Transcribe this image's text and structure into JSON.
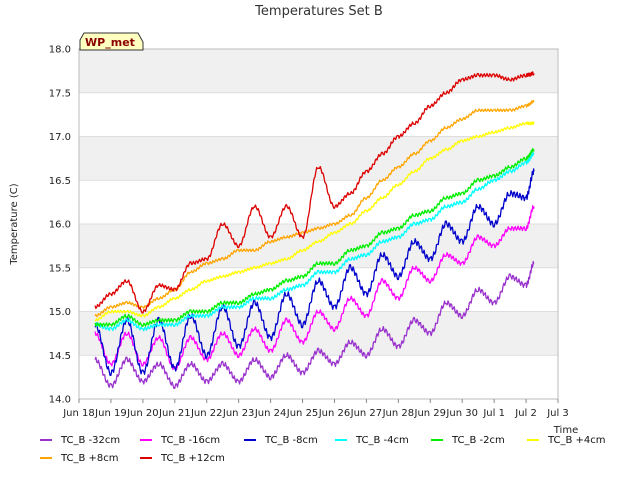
{
  "chart_data": {
    "type": "line",
    "title": "Temperatures Set B",
    "xlabel": "Time",
    "ylabel": "Temperature (C)",
    "badge": "WP_met",
    "xlim": [
      "2024-06-18",
      "2024-07-03"
    ],
    "ylim": [
      14.0,
      18.0
    ],
    "x_ticks": [
      "Jun 18",
      "Jun 19",
      "Jun 20",
      "Jun 21",
      "Jun 22",
      "Jun 23",
      "Jun 24",
      "Jun 25",
      "Jun 26",
      "Jun 27",
      "Jun 28",
      "Jun 29",
      "Jun 30",
      "Jul 1",
      "Jul 2",
      "Jul 3"
    ],
    "y_ticks": [
      "14.0",
      "14.5",
      "15.0",
      "15.5",
      "16.0",
      "16.5",
      "17.0",
      "17.5",
      "18.0"
    ],
    "grid": true,
    "legend": "bottom",
    "x": [
      "2024-06-18 12:00",
      "2024-06-19 00:00",
      "2024-06-19 12:00",
      "2024-06-20 00:00",
      "2024-06-20 12:00",
      "2024-06-21 00:00",
      "2024-06-21 12:00",
      "2024-06-22 00:00",
      "2024-06-22 12:00",
      "2024-06-23 00:00",
      "2024-06-23 12:00",
      "2024-06-24 00:00",
      "2024-06-24 12:00",
      "2024-06-25 00:00",
      "2024-06-25 12:00",
      "2024-06-26 00:00",
      "2024-06-26 12:00",
      "2024-06-27 00:00",
      "2024-06-27 12:00",
      "2024-06-28 00:00",
      "2024-06-28 12:00",
      "2024-06-29 00:00",
      "2024-06-29 12:00",
      "2024-06-30 00:00",
      "2024-06-30 12:00",
      "2024-07-01 00:00",
      "2024-07-01 12:00",
      "2024-07-02 00:00",
      "2024-07-02 06:00"
    ],
    "series": [
      {
        "name": "TC_B -32cm",
        "color": "#9932cc",
        "values": [
          14.45,
          14.15,
          14.45,
          14.2,
          14.4,
          14.15,
          14.4,
          14.2,
          14.4,
          14.2,
          14.45,
          14.25,
          14.5,
          14.3,
          14.55,
          14.4,
          14.65,
          14.5,
          14.8,
          14.6,
          14.9,
          14.75,
          15.1,
          14.95,
          15.25,
          15.1,
          15.4,
          15.3,
          15.55
        ]
      },
      {
        "name": "TC_B -16cm",
        "color": "#ff00ff",
        "values": [
          14.75,
          14.4,
          14.75,
          14.4,
          14.7,
          14.35,
          14.7,
          14.45,
          14.75,
          14.5,
          14.8,
          14.55,
          14.9,
          14.65,
          15.0,
          14.8,
          15.15,
          14.95,
          15.35,
          15.15,
          15.5,
          15.35,
          15.65,
          15.55,
          15.85,
          15.75,
          15.95,
          15.95,
          16.2
        ]
      },
      {
        "name": "TC_B -8cm",
        "color": "#0000cd",
        "values": [
          14.85,
          14.3,
          14.9,
          14.3,
          14.9,
          14.35,
          14.95,
          14.5,
          15.05,
          14.6,
          15.1,
          14.7,
          15.2,
          14.85,
          15.35,
          15.05,
          15.5,
          15.2,
          15.65,
          15.4,
          15.8,
          15.6,
          16.0,
          15.8,
          16.2,
          16.0,
          16.35,
          16.3,
          16.6
        ]
      },
      {
        "name": "TC_B -4cm",
        "color": "#00ffff",
        "values": [
          14.85,
          14.8,
          14.9,
          14.8,
          14.85,
          14.85,
          14.95,
          14.95,
          15.05,
          15.05,
          15.15,
          15.15,
          15.25,
          15.3,
          15.45,
          15.45,
          15.6,
          15.65,
          15.8,
          15.85,
          16.0,
          16.05,
          16.2,
          16.25,
          16.4,
          16.5,
          16.6,
          16.7,
          16.8
        ]
      },
      {
        "name": "TC_B -2cm",
        "color": "#00ee00",
        "values": [
          14.85,
          14.85,
          14.95,
          14.85,
          14.9,
          14.9,
          15.0,
          15.0,
          15.1,
          15.1,
          15.2,
          15.25,
          15.35,
          15.4,
          15.55,
          15.55,
          15.7,
          15.75,
          15.9,
          15.95,
          16.1,
          16.15,
          16.3,
          16.35,
          16.5,
          16.55,
          16.65,
          16.75,
          16.85
        ]
      },
      {
        "name": "TC_B +4cm",
        "color": "#ffff00",
        "values": [
          14.9,
          15.0,
          15.0,
          14.95,
          15.05,
          15.15,
          15.25,
          15.35,
          15.4,
          15.45,
          15.5,
          15.55,
          15.6,
          15.7,
          15.8,
          15.9,
          16.0,
          16.15,
          16.3,
          16.45,
          16.6,
          16.75,
          16.85,
          16.95,
          17.0,
          17.05,
          17.1,
          17.15,
          17.15
        ]
      },
      {
        "name": "TC_B +8cm",
        "color": "#ffa500",
        "values": [
          14.95,
          15.05,
          15.1,
          15.05,
          15.15,
          15.25,
          15.45,
          15.55,
          15.6,
          15.7,
          15.7,
          15.8,
          15.85,
          15.9,
          15.95,
          16.0,
          16.1,
          16.3,
          16.5,
          16.65,
          16.8,
          16.95,
          17.1,
          17.2,
          17.3,
          17.3,
          17.3,
          17.35,
          17.4
        ]
      },
      {
        "name": "TC_B +12cm",
        "color": "#dd0000",
        "values": [
          15.05,
          15.2,
          15.35,
          15.0,
          15.3,
          15.25,
          15.55,
          15.6,
          16.0,
          15.75,
          16.2,
          15.85,
          16.2,
          15.85,
          16.65,
          16.2,
          16.35,
          16.6,
          16.8,
          17.0,
          17.15,
          17.35,
          17.5,
          17.65,
          17.7,
          17.7,
          17.65,
          17.7,
          17.72
        ]
      }
    ]
  }
}
